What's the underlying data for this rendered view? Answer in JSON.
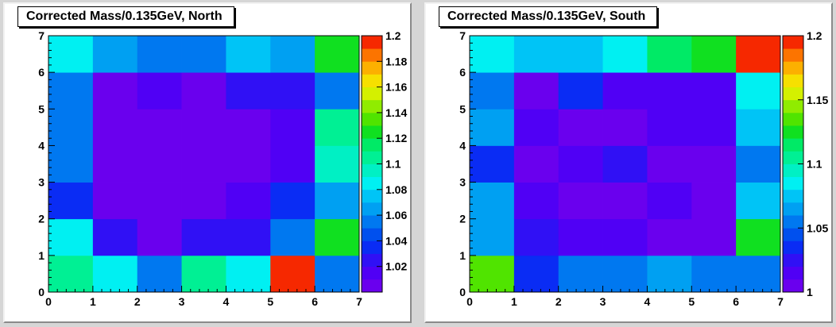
{
  "chart_data": [
    {
      "type": "heatmap",
      "title": "Corrected Mass/0.135GeV, North",
      "xlim": [
        0,
        7
      ],
      "ylim": [
        0,
        7
      ],
      "x_ticks": [
        0,
        1,
        2,
        3,
        4,
        5,
        6,
        7
      ],
      "y_ticks": [
        0,
        1,
        2,
        3,
        4,
        5,
        6,
        7
      ],
      "zlim": [
        1.0,
        1.2
      ],
      "z_ticks": [
        1.02,
        1.04,
        1.06,
        1.08,
        1.1,
        1.12,
        1.14,
        1.16,
        1.18,
        1.2
      ],
      "z_tick_labels": [
        "1.02",
        "1.04",
        "1.06",
        "1.08",
        "1.1",
        "1.12",
        "1.14",
        "1.16",
        "1.18",
        "1.2"
      ],
      "values_by_row_y": [
        [
          1.105,
          1.085,
          1.055,
          1.105,
          1.085,
          1.195,
          1.055
        ],
        [
          1.085,
          1.025,
          1.005,
          1.025,
          1.025,
          1.055,
          1.125
        ],
        [
          1.035,
          1.005,
          1.005,
          1.005,
          1.015,
          1.035,
          1.065
        ],
        [
          1.055,
          1.005,
          1.005,
          1.005,
          1.005,
          1.015,
          1.095
        ],
        [
          1.055,
          1.005,
          1.005,
          1.005,
          1.005,
          1.015,
          1.105
        ],
        [
          1.055,
          1.005,
          1.015,
          1.005,
          1.025,
          1.025,
          1.055
        ],
        [
          1.085,
          1.065,
          1.055,
          1.055,
          1.075,
          1.065,
          1.125
        ]
      ]
    },
    {
      "type": "heatmap",
      "title": "Corrected Mass/0.135GeV, South",
      "xlim": [
        0,
        7
      ],
      "ylim": [
        0,
        7
      ],
      "x_ticks": [
        0,
        1,
        2,
        3,
        4,
        5,
        6,
        7
      ],
      "y_ticks": [
        0,
        1,
        2,
        3,
        4,
        5,
        6,
        7
      ],
      "zlim": [
        1.0,
        1.2
      ],
      "z_ticks": [
        1.0,
        1.05,
        1.1,
        1.15,
        1.2
      ],
      "z_tick_labels": [
        "1",
        "1.05",
        "1.1",
        "1.15",
        "1.2"
      ],
      "values_by_row_y": [
        [
          1.135,
          1.035,
          1.055,
          1.055,
          1.065,
          1.055,
          1.055
        ],
        [
          1.065,
          1.025,
          1.015,
          1.015,
          1.005,
          1.005,
          1.125
        ],
        [
          1.065,
          1.015,
          1.005,
          1.005,
          1.015,
          1.005,
          1.075
        ],
        [
          1.035,
          1.005,
          1.015,
          1.025,
          1.005,
          1.005,
          1.055
        ],
        [
          1.065,
          1.015,
          1.005,
          1.005,
          1.015,
          1.015,
          1.075
        ],
        [
          1.055,
          1.005,
          1.035,
          1.015,
          1.015,
          1.015,
          1.085
        ],
        [
          1.085,
          1.075,
          1.075,
          1.085,
          1.115,
          1.125,
          1.195
        ]
      ]
    }
  ]
}
